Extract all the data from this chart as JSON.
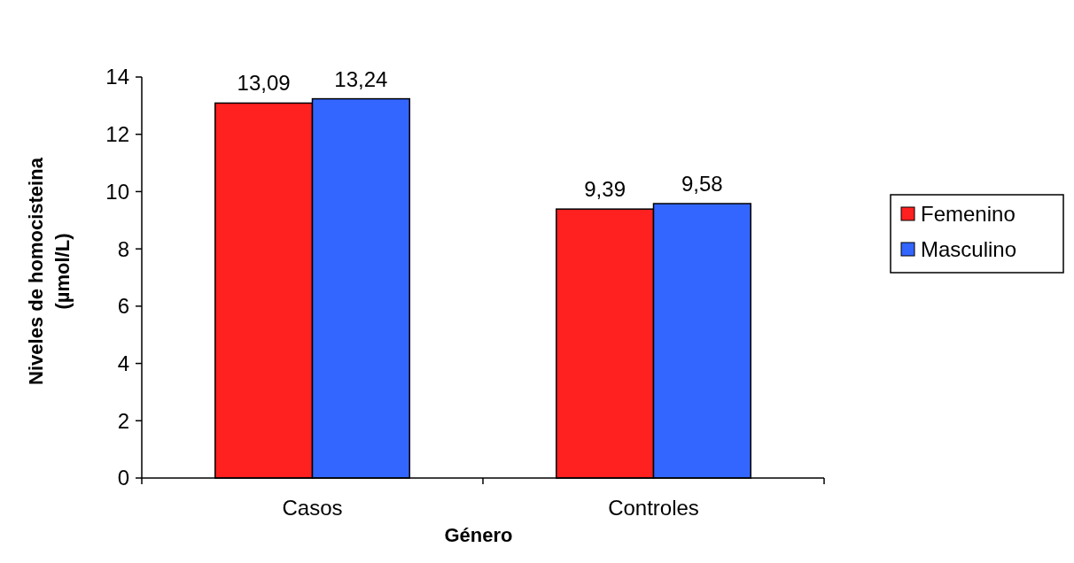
{
  "chart_data": {
    "type": "bar",
    "xlabel": "Género",
    "ylabel": "Niveles de homocisteina\n(µmol/L)",
    "categories": [
      "Casos",
      "Controles"
    ],
    "series": [
      {
        "name": "Femenino",
        "color": "#ff2020",
        "values": [
          13.09,
          9.39
        ],
        "value_labels": [
          "13,09",
          "9,39"
        ]
      },
      {
        "name": "Masculino",
        "color": "#3366ff",
        "values": [
          13.24,
          9.58
        ],
        "value_labels": [
          "13,24",
          "9,58"
        ]
      }
    ],
    "ylim": [
      0,
      14
    ],
    "yticks": [
      0,
      2,
      4,
      6,
      8,
      10,
      12,
      14
    ],
    "legend": "right"
  }
}
